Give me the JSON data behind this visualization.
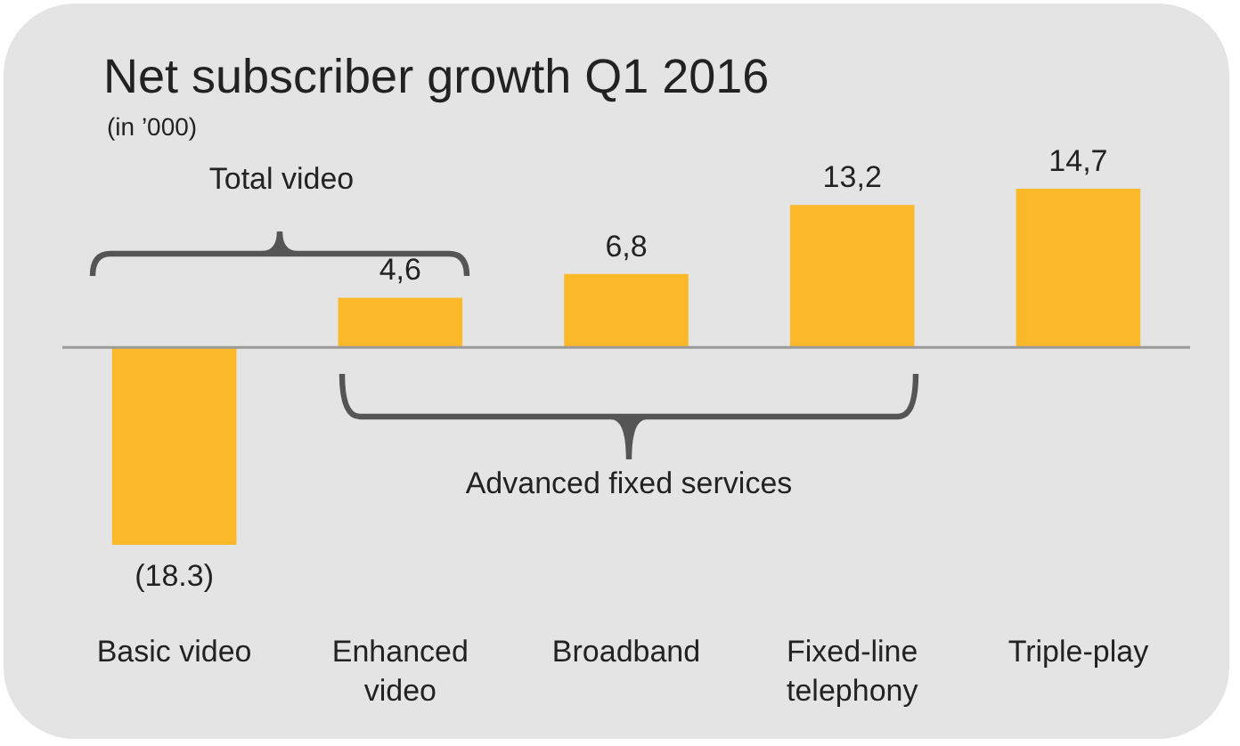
{
  "chart_data": {
    "type": "bar",
    "title": "Net subscriber growth Q1 2016",
    "subtitle": "(in ’000)",
    "categories": [
      "Basic video",
      "Enhanced video",
      "Broadband",
      "Fixed-line telephony",
      "Triple-play"
    ],
    "values": [
      -18.3,
      4.6,
      6.8,
      13.2,
      14.7
    ],
    "value_labels": [
      "(18.3)",
      "4,6",
      "6,8",
      "13,2",
      "14,7"
    ],
    "color": "#fbb829",
    "annotations": [
      "Total video",
      "Advanced fixed services"
    ]
  }
}
